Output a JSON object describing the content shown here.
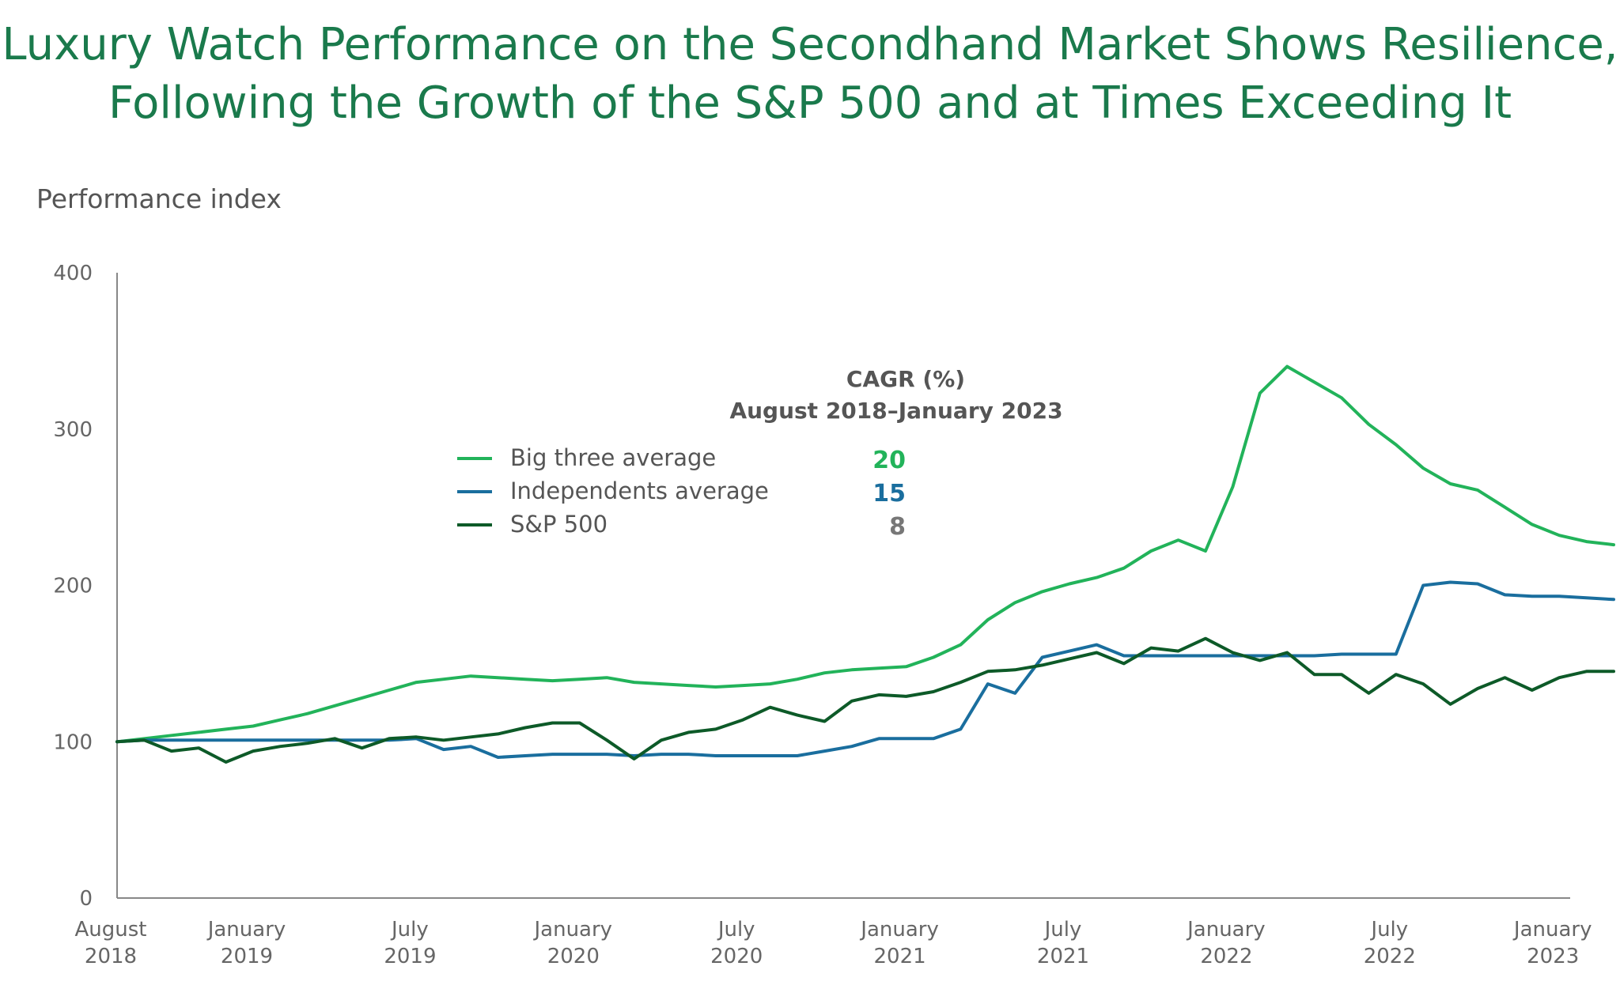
{
  "chart_data": {
    "type": "line",
    "title": "Luxury Watch Performance on the Secondhand Market Shows Resilience, Following the Growth of the S&P 500 and at Times Exceeding It",
    "ylabel": "Performance index",
    "xlabel": "",
    "ylim": [
      0,
      400
    ],
    "yticks": [
      "400",
      "300",
      "200",
      "100",
      "0"
    ],
    "xlim": [
      "2018-08",
      "2023-03"
    ],
    "xticks": [
      {
        "date": "2018-08",
        "label": [
          "August",
          "2018"
        ]
      },
      {
        "date": "2019-01",
        "label": [
          "January",
          "2019"
        ]
      },
      {
        "date": "2019-07",
        "label": [
          "July",
          "2019"
        ]
      },
      {
        "date": "2020-01",
        "label": [
          "January",
          "2020"
        ]
      },
      {
        "date": "2020-07",
        "label": [
          "July",
          "2020"
        ]
      },
      {
        "date": "2021-01",
        "label": [
          "January",
          "2021"
        ]
      },
      {
        "date": "2021-07",
        "label": [
          "July",
          "2021"
        ]
      },
      {
        "date": "2022-01",
        "label": [
          "January",
          "2022"
        ]
      },
      {
        "date": "2022-07",
        "label": [
          "July",
          "2022"
        ]
      },
      {
        "date": "2023-01",
        "label": [
          "January",
          "2023"
        ]
      }
    ],
    "grid": false,
    "legend_position": "top-center",
    "cagr": {
      "heading": "CAGR (%)",
      "period": "August 2018–January 2023"
    },
    "x": [
      "2018-08",
      "2018-09",
      "2018-10",
      "2018-11",
      "2018-12",
      "2019-01",
      "2019-02",
      "2019-03",
      "2019-04",
      "2019-05",
      "2019-06",
      "2019-07",
      "2019-08",
      "2019-09",
      "2019-10",
      "2019-11",
      "2019-12",
      "2020-01",
      "2020-02",
      "2020-03",
      "2020-04",
      "2020-05",
      "2020-06",
      "2020-07",
      "2020-08",
      "2020-09",
      "2020-10",
      "2020-11",
      "2020-12",
      "2021-01",
      "2021-02",
      "2021-03",
      "2021-04",
      "2021-05",
      "2021-06",
      "2021-07",
      "2021-08",
      "2021-09",
      "2021-10",
      "2021-11",
      "2021-12",
      "2022-01",
      "2022-02",
      "2022-03",
      "2022-04",
      "2022-05",
      "2022-06",
      "2022-07",
      "2022-08",
      "2022-09",
      "2022-10",
      "2022-11",
      "2022-12",
      "2023-01",
      "2023-02",
      "2023-03"
    ],
    "series": [
      {
        "name": "Big three average",
        "color": "#22b35a",
        "cagr": "20",
        "values": [
          100,
          102,
          104,
          106,
          108,
          110,
          114,
          118,
          123,
          128,
          133,
          138,
          140,
          142,
          141,
          140,
          139,
          140,
          141,
          138,
          137,
          136,
          135,
          136,
          137,
          140,
          144,
          146,
          147,
          148,
          154,
          162,
          178,
          189,
          196,
          201,
          205,
          211,
          222,
          229,
          222,
          263,
          323,
          340,
          330,
          320,
          303,
          290,
          275,
          265,
          261,
          250,
          239,
          232,
          228,
          226
        ]
      },
      {
        "name": "Independents average",
        "color": "#1a6e9e",
        "cagr": "15",
        "values": [
          100,
          101,
          101,
          101,
          101,
          101,
          101,
          101,
          101,
          101,
          101,
          102,
          95,
          97,
          90,
          91,
          92,
          92,
          92,
          91,
          92,
          92,
          91,
          91,
          91,
          91,
          94,
          97,
          102,
          102,
          102,
          108,
          137,
          131,
          154,
          158,
          162,
          155,
          155,
          155,
          155,
          155,
          155,
          155,
          155,
          156,
          156,
          156,
          200,
          202,
          201,
          194,
          193,
          193,
          192,
          191
        ]
      },
      {
        "name": "S&P 500",
        "color": "#0d5a28",
        "cagr": "8",
        "values": [
          100,
          101,
          94,
          96,
          87,
          94,
          97,
          99,
          102,
          96,
          102,
          103,
          101,
          103,
          105,
          109,
          112,
          112,
          101,
          89,
          101,
          106,
          108,
          114,
          122,
          117,
          113,
          126,
          130,
          129,
          132,
          138,
          145,
          146,
          149,
          153,
          157,
          150,
          160,
          158,
          166,
          157,
          152,
          157,
          143,
          143,
          131,
          143,
          137,
          124,
          134,
          141,
          133,
          141,
          145,
          145
        ]
      }
    ]
  }
}
